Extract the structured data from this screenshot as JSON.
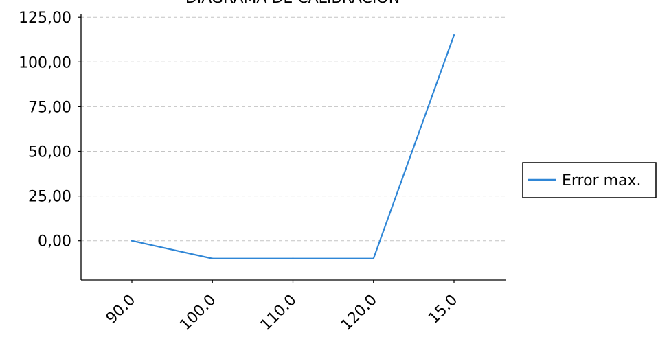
{
  "chart_data": {
    "type": "line",
    "title": "DIAGRAMA DE CALIBRACIÓN",
    "xlabel": "",
    "ylabel": "",
    "categories": [
      "90.0",
      "100.0",
      "110.0",
      "120.0",
      "15.0"
    ],
    "series": [
      {
        "name": "Error max.",
        "values": [
          0,
          -10,
          -10,
          -10,
          115
        ],
        "color": "#2f86d6"
      }
    ],
    "ylim": [
      -22,
      127
    ],
    "yticks": [
      0,
      25,
      50,
      75,
      100,
      125
    ],
    "ytick_labels": [
      "0,00",
      "25,00",
      "50,00",
      "75,00",
      "100,00",
      "125,00"
    ],
    "grid": "horizontal-dashed",
    "legend_position": "right"
  }
}
